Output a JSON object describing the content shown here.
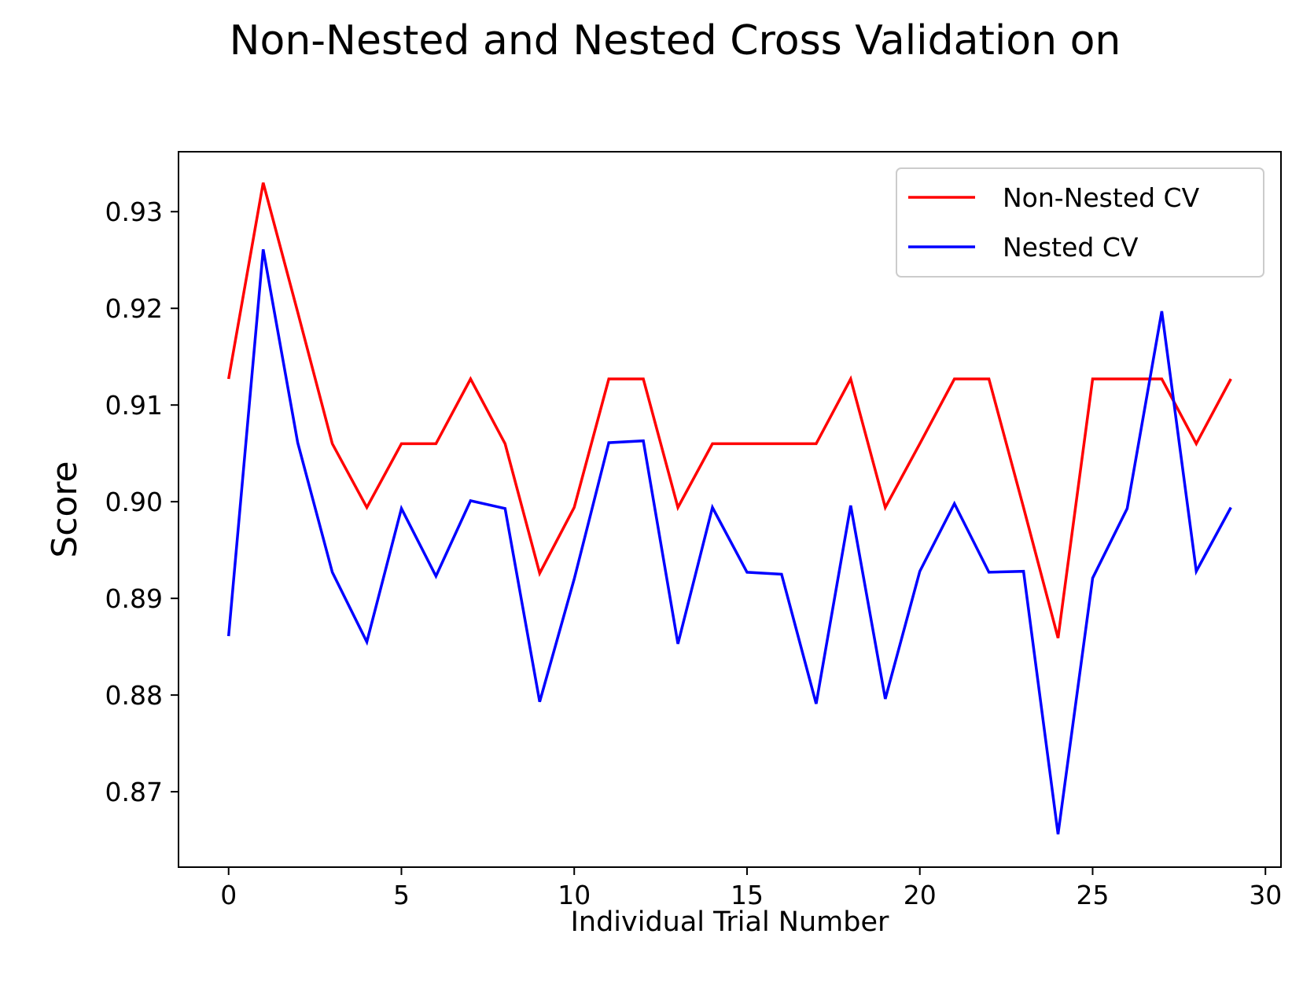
{
  "chart_data": {
    "type": "line",
    "title": "Non-Nested and Nested Cross Validation on",
    "xlabel": "Individual Trial Number",
    "ylabel": "Score",
    "xlim": [
      -1.45,
      30.45
    ],
    "ylim": [
      0.8622,
      0.9362
    ],
    "xticks": [
      0,
      5,
      10,
      15,
      20,
      25,
      30
    ],
    "yticks": [
      0.87,
      0.88,
      0.89,
      0.9,
      0.91,
      0.92,
      0.93
    ],
    "ytick_labels": [
      "0.87",
      "0.88",
      "0.89",
      "0.90",
      "0.91",
      "0.92",
      "0.93"
    ],
    "grid": false,
    "legend_position": "top-right",
    "x": [
      0,
      1,
      2,
      3,
      4,
      5,
      6,
      7,
      8,
      9,
      10,
      11,
      12,
      13,
      14,
      15,
      16,
      17,
      18,
      19,
      20,
      21,
      22,
      23,
      24,
      25,
      26,
      27,
      28,
      29
    ],
    "series": [
      {
        "name": "Non-Nested CV",
        "color": "#ff0000",
        "values": [
          0.9127,
          0.933,
          0.9196,
          0.906,
          0.8994,
          0.906,
          0.906,
          0.9127,
          0.906,
          0.8926,
          0.8994,
          0.9127,
          0.9127,
          0.8994,
          0.906,
          0.906,
          0.906,
          0.906,
          0.9127,
          0.8994,
          0.906,
          0.9127,
          0.9127,
          0.8994,
          0.8859,
          0.9127,
          0.9127,
          0.9127,
          0.906,
          0.9127
        ]
      },
      {
        "name": "Nested CV",
        "color": "#0000ff",
        "values": [
          0.8861,
          0.9261,
          0.9061,
          0.8927,
          0.8855,
          0.8993,
          0.8923,
          0.9001,
          0.8993,
          0.8793,
          0.892,
          0.9061,
          0.9063,
          0.8853,
          0.8994,
          0.8927,
          0.8925,
          0.8791,
          0.8996,
          0.8796,
          0.8928,
          0.8998,
          0.8927,
          0.8928,
          0.8656,
          0.8921,
          0.8993,
          0.9197,
          0.8928,
          0.8994
        ]
      }
    ]
  }
}
